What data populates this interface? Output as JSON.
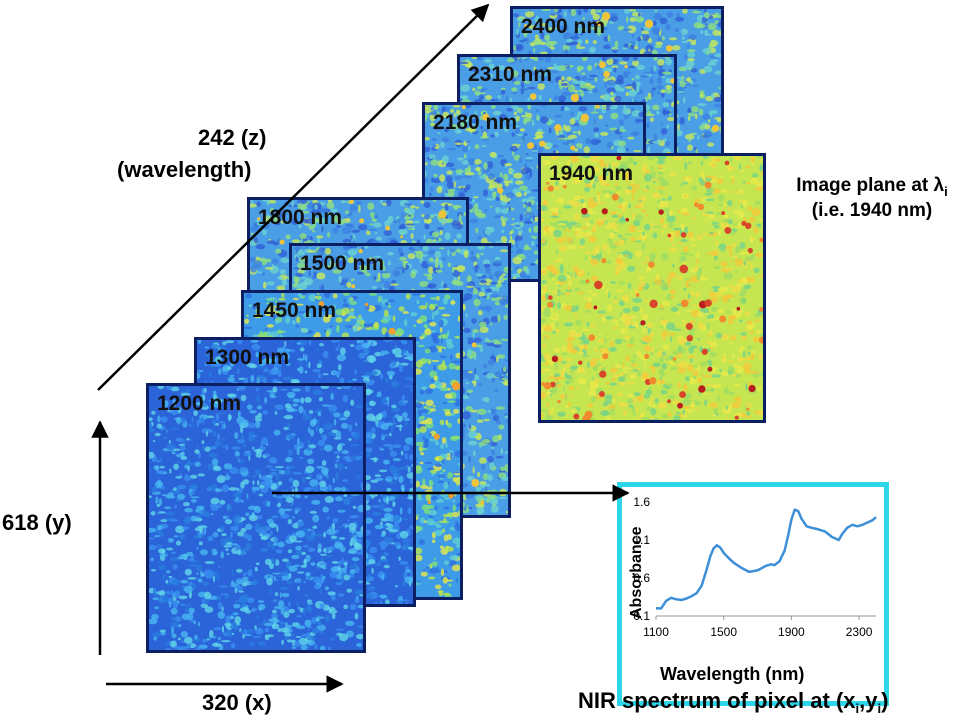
{
  "axes": {
    "x_label": "320 (x)",
    "y_label": "618 (y)",
    "z_label": "242 (z)",
    "z_sub": "(wavelength)"
  },
  "planes": [
    {
      "label": "2400 nm",
      "palette": "mixed"
    },
    {
      "label": "2310 nm",
      "palette": "mixed"
    },
    {
      "label": "2180 nm",
      "palette": "mixed"
    },
    {
      "label": "1940 nm",
      "palette": "hot"
    },
    {
      "label": "1800 nm",
      "palette": "mixed"
    },
    {
      "label": "1500 nm",
      "palette": "mixed"
    },
    {
      "label": "1450 nm",
      "palette": "green"
    },
    {
      "label": "1300 nm",
      "palette": "blue"
    },
    {
      "label": "1200 nm",
      "palette": "blue"
    }
  ],
  "annotation": {
    "line1": "Image plane at λ",
    "line1_sub": "i",
    "line2": "(i.e. 1940 nm)"
  },
  "spectrum_caption": {
    "text": "NIR spectrum of pixel at (x",
    "sub1": "i",
    "mid": ",y",
    "sub2": "i",
    "end": ")"
  },
  "colors": {
    "frame": "#0d1f63",
    "spectrum_border": "#2ed6ea",
    "spectrum_line": "#3d8fd8"
  },
  "chart_data": {
    "type": "line",
    "xlabel": "Wavelength (nm)",
    "ylabel": "Absorbance",
    "xlim": [
      1100,
      2400
    ],
    "ylim": [
      0.1,
      1.6
    ],
    "xticks": [
      1100,
      1500,
      1900,
      2300
    ],
    "yticks": [
      0.1,
      0.6,
      1.1,
      1.6
    ],
    "xtick_labels": [
      "1100",
      "1500",
      "1900",
      "2300"
    ],
    "ytick_labels": [
      "0.1",
      "0.6",
      "1.1",
      "1.6"
    ],
    "series": [
      {
        "x": [
          1100,
          1130,
          1160,
          1190,
          1220,
          1250,
          1280,
          1310,
          1340,
          1370,
          1400,
          1420,
          1440,
          1460,
          1480,
          1500,
          1530,
          1560,
          1600,
          1650,
          1700,
          1750,
          1780,
          1800,
          1830,
          1860,
          1880,
          1900,
          1920,
          1940,
          1960,
          1990,
          2020,
          2060,
          2100,
          2140,
          2180,
          2200,
          2230,
          2260,
          2290,
          2320,
          2350,
          2380,
          2400
        ],
        "y": [
          0.2,
          0.2,
          0.3,
          0.34,
          0.32,
          0.31,
          0.33,
          0.36,
          0.4,
          0.5,
          0.72,
          0.88,
          0.99,
          1.03,
          1.0,
          0.93,
          0.86,
          0.8,
          0.74,
          0.68,
          0.7,
          0.76,
          0.78,
          0.77,
          0.82,
          0.96,
          1.15,
          1.37,
          1.5,
          1.48,
          1.38,
          1.28,
          1.26,
          1.24,
          1.21,
          1.14,
          1.1,
          1.18,
          1.26,
          1.3,
          1.28,
          1.3,
          1.33,
          1.36,
          1.4
        ]
      }
    ]
  }
}
